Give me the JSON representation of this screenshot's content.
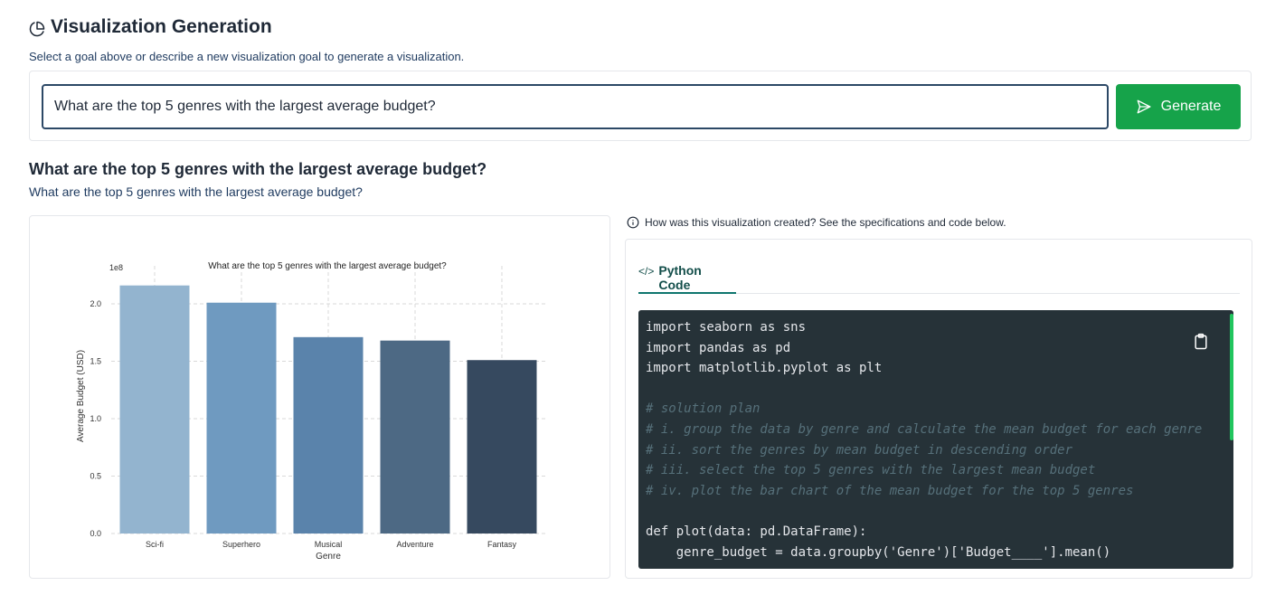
{
  "header": {
    "title": "Visualization Generation",
    "subtitle": "Select a goal above or describe a new visualization goal to generate a visualization."
  },
  "goal_input": {
    "value": "What are the top 5 genres with the largest average budget?"
  },
  "generate_button": {
    "label": "Generate"
  },
  "visualization": {
    "heading": "What are the top 5 genres with the largest average budget?",
    "subheading": "What are the top 5 genres with the largest average budget?"
  },
  "chart_data": {
    "type": "bar",
    "title": "What are the top 5 genres with the largest average budget?",
    "xlabel": "Genre",
    "ylabel": "Average Budget (USD)",
    "y_scale_label": "1e8",
    "categories": [
      "Sci-fi",
      "Superhero",
      "Musical",
      "Adventure",
      "Fantasy"
    ],
    "values": [
      2.16,
      2.01,
      1.71,
      1.68,
      1.51
    ],
    "yticks": [
      "0.0",
      "0.5",
      "1.0",
      "1.5",
      "2.0"
    ],
    "ylim": [
      0,
      2.2
    ],
    "colors": [
      "#93b4cf",
      "#6f9ac0",
      "#5a83ab",
      "#4d6984",
      "#36495f"
    ],
    "grid": true
  },
  "info": {
    "text": "How was this visualization created? See the specifications and code below."
  },
  "code_panel": {
    "tab_label": "Python Code",
    "lines": [
      "import seaborn as sns",
      "import pandas as pd",
      "import matplotlib.pyplot as plt",
      "",
      "# solution plan",
      "# i. group the data by genre and calculate the mean budget for each genre",
      "# ii. sort the genres by mean budget in descending order",
      "# iii. select the top 5 genres with the largest mean budget",
      "# iv. plot the bar chart of the mean budget for the top 5 genres",
      "",
      "def plot(data: pd.DataFrame):",
      "    genre_budget = data.groupby('Genre')['Budget____'].mean()"
    ]
  },
  "colors": {
    "accent_green": "#16a34a",
    "code_bg": "#263238",
    "tab_active": "#0f766e"
  }
}
